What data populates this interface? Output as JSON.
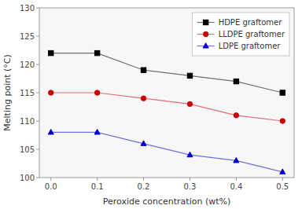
{
  "chart_data": {
    "type": "line",
    "x": [
      0.0,
      0.1,
      0.2,
      0.3,
      0.4,
      0.5
    ],
    "series": [
      {
        "name": "HDPE graftomer",
        "color": "#000000",
        "marker": "square",
        "values": [
          122.0,
          122.0,
          119.0,
          118.0,
          117.0,
          115.0
        ]
      },
      {
        "name": "LLDPE graftomer",
        "color": "#cc0000",
        "marker": "circle",
        "values": [
          115.0,
          115.0,
          114.0,
          113.0,
          111.0,
          110.0
        ]
      },
      {
        "name": "LDPE graftomer",
        "color": "#0000cc",
        "marker": "triangle",
        "values": [
          108.0,
          108.0,
          106.0,
          104.0,
          103.0,
          101.0
        ]
      }
    ],
    "x_label": "Peroxide concentration (wt%)",
    "y_label": "Melting point (°C)",
    "xlim": [
      -0.025,
      0.525
    ],
    "ylim": [
      100,
      130
    ],
    "xticks": [
      {
        "value": 0.0,
        "label": "0.0"
      },
      0.1,
      0.2,
      0.3,
      0.4,
      0.5
    ],
    "yticks": [
      100,
      105,
      110,
      115,
      120,
      125,
      130
    ],
    "grid": false,
    "legend": "upper right"
  }
}
